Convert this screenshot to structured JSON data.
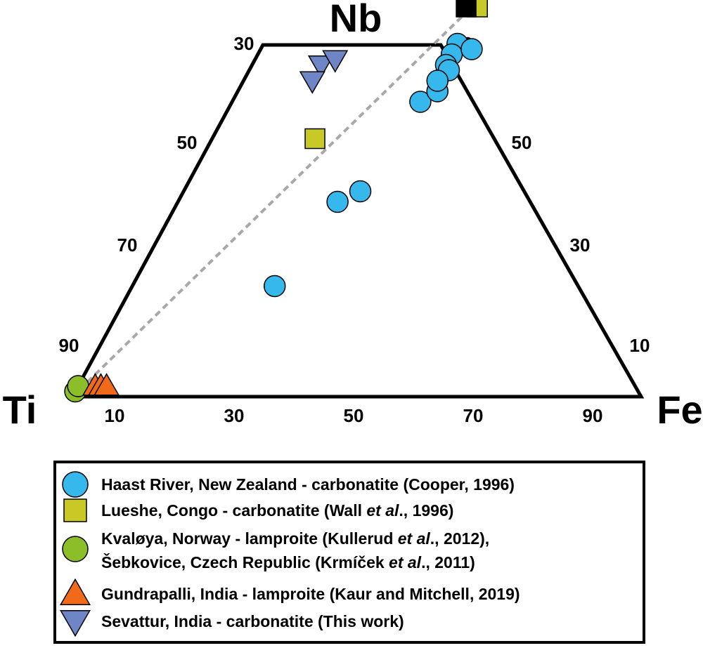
{
  "chart_data": {
    "type": "scatter",
    "subtype": "ternary-trapezoid",
    "apices": {
      "top": "Nb",
      "left": "Ti",
      "right": "Fe"
    },
    "grid": false,
    "top_ticks": {
      "left": "30",
      "right": "70"
    },
    "left_axis_ticks": [
      "50",
      "70",
      "90"
    ],
    "right_axis_ticks": [
      "50",
      "30",
      "10"
    ],
    "bottom_axis_ticks": [
      "10",
      "30",
      "50",
      "70",
      "90"
    ],
    "series": [
      {
        "name": "Haast River, New Zealand - carbonatite (Cooper, 1996)",
        "marker": "circle",
        "color": "#36b8ec",
        "points": [
          {
            "Nb": 67,
            "Fe": 34
          },
          {
            "Nb": 65,
            "Fe": 34
          },
          {
            "Nb": 66,
            "Fe": 37
          },
          {
            "Nb": 63,
            "Fe": 34
          },
          {
            "Nb": 62,
            "Fe": 35
          },
          {
            "Nb": 56,
            "Fe": 33
          },
          {
            "Nb": 58,
            "Fe": 35
          },
          {
            "Nb": 60,
            "Fe": 34
          },
          {
            "Nb": 39,
            "Fe": 31
          },
          {
            "Nb": 37,
            "Fe": 28
          },
          {
            "Nb": 21,
            "Fe": 25
          }
        ]
      },
      {
        "name": "Lueshe, Congo - carbonatite (Wall et al., 1996)",
        "marker": "square",
        "color": "#c8c826",
        "points": [
          {
            "Nb": 74,
            "Fe": 34
          },
          {
            "Nb": 49,
            "Fe": 18
          }
        ]
      },
      {
        "name": "Kvaløya, Norway - lamproite (Kullerud et al., 2012), Šebkovice, Czech Republic (Krmíček et al., 2011)",
        "marker": "circle",
        "color": "#8cbe2a",
        "points": [
          {
            "Nb": 1,
            "Fe": 0
          },
          {
            "Nb": 2,
            "Fe": 0
          }
        ]
      },
      {
        "name": "Gundrapalli, India - lamproite (Kaur and Mitchell, 2019)",
        "marker": "triangle-up",
        "color": "#f06a1a",
        "points": [
          {
            "Nb": 2,
            "Fe": 3
          },
          {
            "Nb": 2,
            "Fe": 4
          },
          {
            "Nb": 2,
            "Fe": 5
          }
        ]
      },
      {
        "name": "Sevattur, India - carbonatite (This work)",
        "marker": "triangle-down",
        "color": "#6f86c6",
        "points": [
          {
            "Nb": 63,
            "Fe": 12
          },
          {
            "Nb": 60,
            "Fe": 12
          },
          {
            "Nb": 64,
            "Fe": 14
          }
        ]
      },
      {
        "name": "",
        "marker": "square",
        "color": "#000000",
        "points": [
          {
            "Nb": 74,
            "Fe": 32
          }
        ]
      }
    ],
    "reference_line": {
      "style": "dashed",
      "color": "#a8a8a8",
      "from": {
        "Nb": 0,
        "Fe": 0
      },
      "to": {
        "Nb": 74,
        "Fe": 33
      }
    },
    "legend": {
      "placement": "bottom",
      "entries": [
        {
          "marker": "circle",
          "color": "#36b8ec",
          "lines": [
            [
              {
                "t": "Haast River, New Zealand - carbonatite (Cooper, 1996)",
                "i": false
              }
            ]
          ]
        },
        {
          "marker": "square",
          "color": "#c8c826",
          "lines": [
            [
              {
                "t": "Lueshe, Congo - carbonatite (Wall ",
                "i": false
              },
              {
                "t": "et al",
                "i": true
              },
              {
                "t": "., 1996)",
                "i": false
              }
            ]
          ]
        },
        {
          "marker": "circle",
          "color": "#8cbe2a",
          "lines": [
            [
              {
                "t": "Kvaløya, Norway - lamproite (Kullerud ",
                "i": false
              },
              {
                "t": "et al",
                "i": true
              },
              {
                "t": "., 2012),",
                "i": false
              }
            ],
            [
              {
                "t": "Šebkovice, Czech Republic (Krmíček ",
                "i": false
              },
              {
                "t": "et al",
                "i": true
              },
              {
                "t": "., 2011)",
                "i": false
              }
            ]
          ]
        },
        {
          "marker": "triangle-up",
          "color": "#f06a1a",
          "lines": [
            [
              {
                "t": "Gundrapalli, India - lamproite (Kaur and Mitchell, 2019)",
                "i": false
              }
            ]
          ]
        },
        {
          "marker": "triangle-down",
          "color": "#6f86c6",
          "lines": [
            [
              {
                "t": "Sevattur, India - carbonatite (This work)",
                "i": false
              }
            ]
          ]
        }
      ]
    }
  }
}
